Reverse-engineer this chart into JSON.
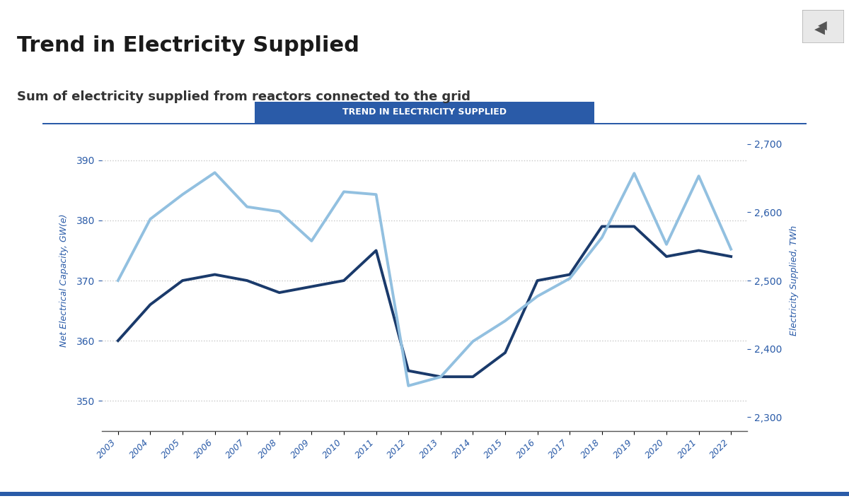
{
  "title": "Trend in Electricity Supplied",
  "subtitle": "Sum of electricity supplied from reactors connected to the grid",
  "banner_text": "TREND IN ELECTRICITY SUPPLIED",
  "years": [
    2003,
    2004,
    2005,
    2006,
    2007,
    2008,
    2009,
    2010,
    2011,
    2012,
    2013,
    2014,
    2015,
    2016,
    2017,
    2018,
    2019,
    2020,
    2021,
    2022
  ],
  "net_capacity": [
    360,
    366,
    370,
    371,
    370,
    368,
    369,
    370,
    375,
    355,
    354,
    354,
    358,
    370,
    371,
    379,
    379,
    374,
    375,
    374
  ],
  "elec_supplied": [
    2500,
    2590,
    2626,
    2658,
    2608,
    2601,
    2558,
    2630,
    2626,
    2346,
    2359,
    2411,
    2441,
    2477,
    2503,
    2563,
    2657,
    2553,
    2653,
    2546
  ],
  "capacity_color": "#1a3a6b",
  "supplied_color": "#92c0e0",
  "background_color": "#ffffff",
  "plot_area_color": "#ffffff",
  "banner_color": "#2a5ba8",
  "banner_text_color": "#ffffff",
  "left_ylabel": "Net Electrical Capacity, GW(e)",
  "right_ylabel": "Electricity Supplied, TWh",
  "left_ylim": [
    345,
    395
  ],
  "right_ylim": [
    2280,
    2720
  ],
  "left_yticks": [
    350,
    360,
    370,
    380,
    390
  ],
  "right_yticks": [
    2300,
    2400,
    2500,
    2600,
    2700
  ],
  "grid_color": "#c8c8c8",
  "axis_color": "#2a5ba8",
  "tick_color": "#2a5ba8",
  "title_fontsize": 22,
  "subtitle_fontsize": 13,
  "legend_label_capacity": "Net Electrical Capacity, GW(e)",
  "legend_label_supplied": "Electricity Supplied, TWh"
}
